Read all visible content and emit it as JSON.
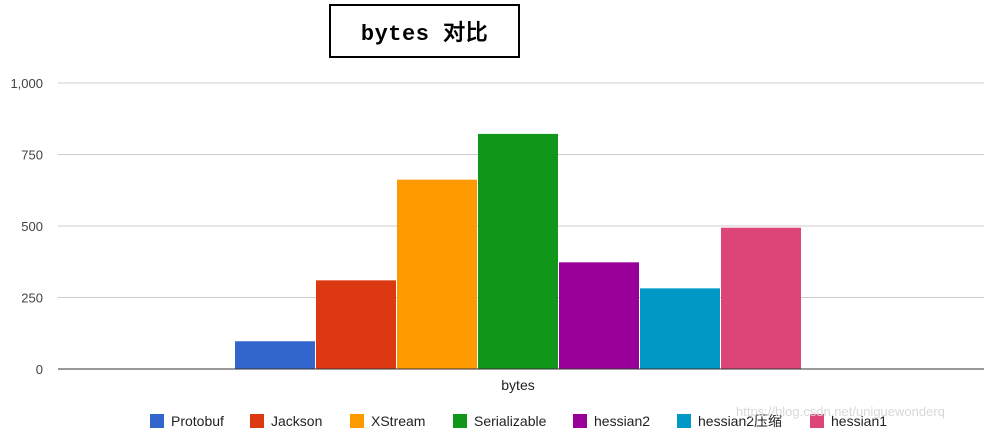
{
  "chart_data": {
    "type": "bar",
    "title": "bytes 对比",
    "categories": [
      "bytes"
    ],
    "series": [
      {
        "name": "Protobuf",
        "values": [
          97
        ],
        "color": "#3366cc"
      },
      {
        "name": "Jackson",
        "values": [
          310
        ],
        "color": "#dc3912"
      },
      {
        "name": "XStream",
        "values": [
          662
        ],
        "color": "#ff9900"
      },
      {
        "name": "Serializable",
        "values": [
          822
        ],
        "color": "#109618"
      },
      {
        "name": "hessian2",
        "values": [
          373
        ],
        "color": "#990099"
      },
      {
        "name": "hessian2压缩",
        "values": [
          282
        ],
        "color": "#0099c6"
      },
      {
        "name": "hessian1",
        "values": [
          494
        ],
        "color": "#dd4477"
      }
    ],
    "ylim": [
      0,
      1000
    ],
    "yticks": [
      0,
      250,
      500,
      750,
      1000
    ],
    "ytick_labels": [
      "0",
      "250",
      "500",
      "750",
      "1,000"
    ],
    "xlabel": "",
    "ylabel": "",
    "grid": true,
    "legend": "bottom"
  },
  "watermark": "https://blog.csdn.net/uniguewonderq"
}
